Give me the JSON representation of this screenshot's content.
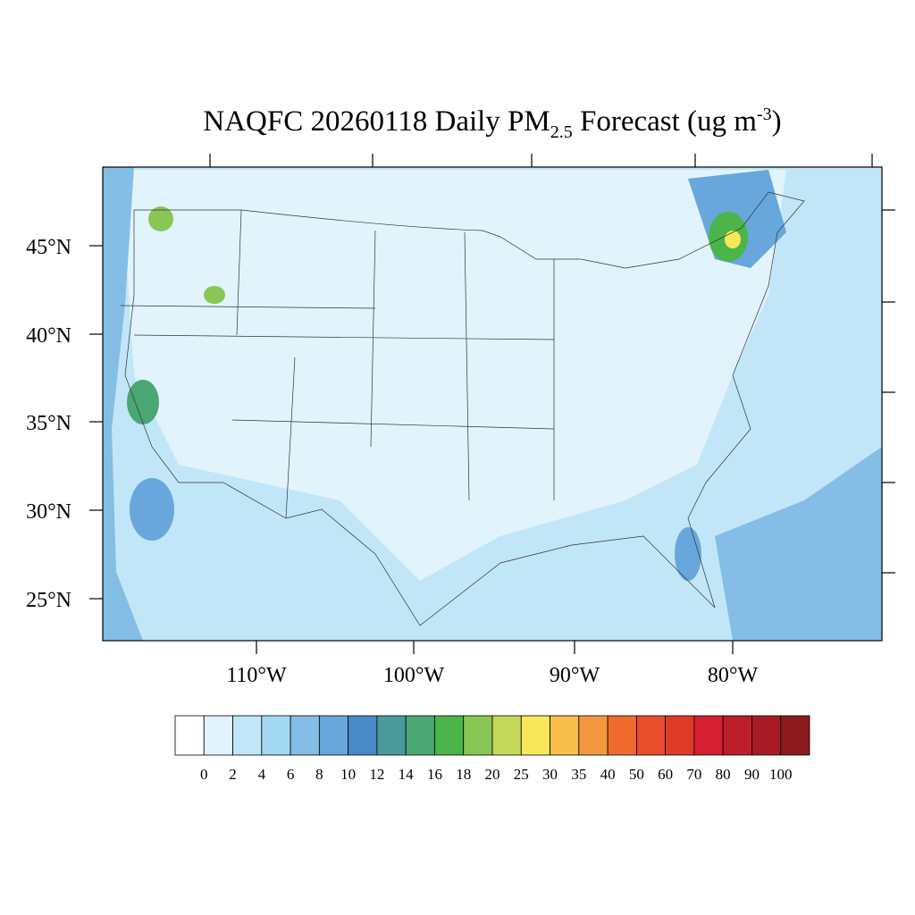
{
  "title": {
    "main": "NAQFC 20260118 Daily PM",
    "sub": "2.5",
    "after": " Forecast (ug m",
    "sup": "-3",
    "close": ")"
  },
  "lat_labels": [
    "45°N",
    "40°N",
    "35°N",
    "30°N",
    "25°N"
  ],
  "lon_labels": [
    "110°W",
    "100°W",
    "90°W",
    "80°W"
  ],
  "colorbar": {
    "colors": [
      "#ffffff",
      "#e1f3fb",
      "#c1e6f7",
      "#a3d8f3",
      "#84bde6",
      "#67a7dc",
      "#4a8ac9",
      "#4a9a9c",
      "#4aa672",
      "#4bb54a",
      "#88c655",
      "#c4d95a",
      "#f7e85a",
      "#f7bf4a",
      "#f5973e",
      "#f06b2e",
      "#e84e2c",
      "#df3a28",
      "#d42030",
      "#be1e2a",
      "#a81b24",
      "#8c1a1c"
    ],
    "labels": [
      0,
      2,
      4,
      6,
      8,
      10,
      12,
      14,
      16,
      18,
      20,
      25,
      30,
      35,
      40,
      50,
      60,
      70,
      80,
      90,
      100
    ]
  }
}
